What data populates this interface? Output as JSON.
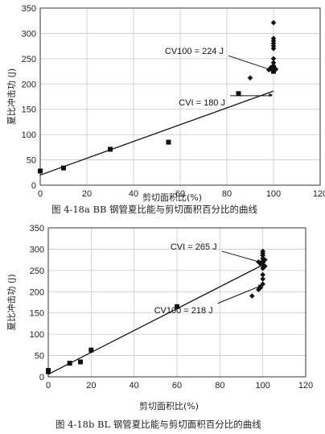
{
  "chart_data": [
    {
      "type": "scatter",
      "caption": "图 4-18a   BB 钢管夏比能与剪切面积百分比的曲线",
      "xlabel": "剪切面积比(%)",
      "ylabel": "夏比冲击功 (J)",
      "xlim": [
        0,
        120
      ],
      "ylim": [
        0,
        350
      ],
      "xticks": [
        "0",
        "20",
        "40",
        "60",
        "80",
        "100",
        "120"
      ],
      "yticks": [
        "0",
        "50",
        "100",
        "150",
        "200",
        "250",
        "300",
        "350"
      ],
      "grid": true,
      "fit_line": {
        "x": [
          0,
          100
        ],
        "y": [
          20,
          186
        ]
      },
      "series": [
        {
          "marker": "square",
          "x": [
            0,
            10,
            30,
            55,
            85,
            100,
            100
          ],
          "y": [
            28,
            34,
            71,
            85,
            181,
            231,
            225
          ]
        },
        {
          "marker": "diamond",
          "x": [
            90,
            100,
            100,
            100,
            100,
            100,
            100,
            100,
            100,
            100,
            100,
            100,
            100,
            99,
            98,
            101
          ],
          "y": [
            212,
            321,
            290,
            285,
            280,
            275,
            270,
            250,
            242,
            236,
            232,
            229,
            226,
            233,
            228,
            229
          ]
        }
      ],
      "annotations": [
        {
          "text": "CV100 = 224 J",
          "x": 100,
          "y": 224
        },
        {
          "text": "CVI = 180 J",
          "x": 100,
          "y": 180
        }
      ]
    },
    {
      "type": "scatter",
      "caption": "图 4-18b   BL 钢管夏比能与剪切面积百分比的曲线",
      "xlabel": "剪切面积比(%)",
      "ylabel": "夏比冲击功 (J)",
      "xlim": [
        0,
        120
      ],
      "ylim": [
        0,
        350
      ],
      "xticks": [
        "0",
        "20",
        "40",
        "60",
        "80",
        "100",
        "120"
      ],
      "yticks": [
        "0",
        "50",
        "100",
        "150",
        "200",
        "250",
        "300",
        "350"
      ],
      "grid": true,
      "fit_line": {
        "x": [
          0,
          100
        ],
        "y": [
          6,
          263
        ]
      },
      "series": [
        {
          "marker": "square",
          "x": [
            0,
            0,
            10,
            15,
            20,
            60
          ],
          "y": [
            15,
            12,
            32,
            35,
            63,
            165
          ]
        },
        {
          "marker": "diamond",
          "x": [
            95,
            98,
            99,
            100,
            100,
            100,
            100,
            100,
            100,
            100,
            100,
            100,
            100,
            100,
            99,
            98,
            101,
            101
          ],
          "y": [
            190,
            205,
            210,
            295,
            290,
            285,
            278,
            272,
            268,
            262,
            255,
            240,
            230,
            218,
            265,
            270,
            260,
            275
          ]
        }
      ],
      "annotations": [
        {
          "text": "CVI = 265 J",
          "x": 100,
          "y": 265
        },
        {
          "text": "CV100 = 218 J",
          "x": 100,
          "y": 218
        }
      ]
    }
  ]
}
